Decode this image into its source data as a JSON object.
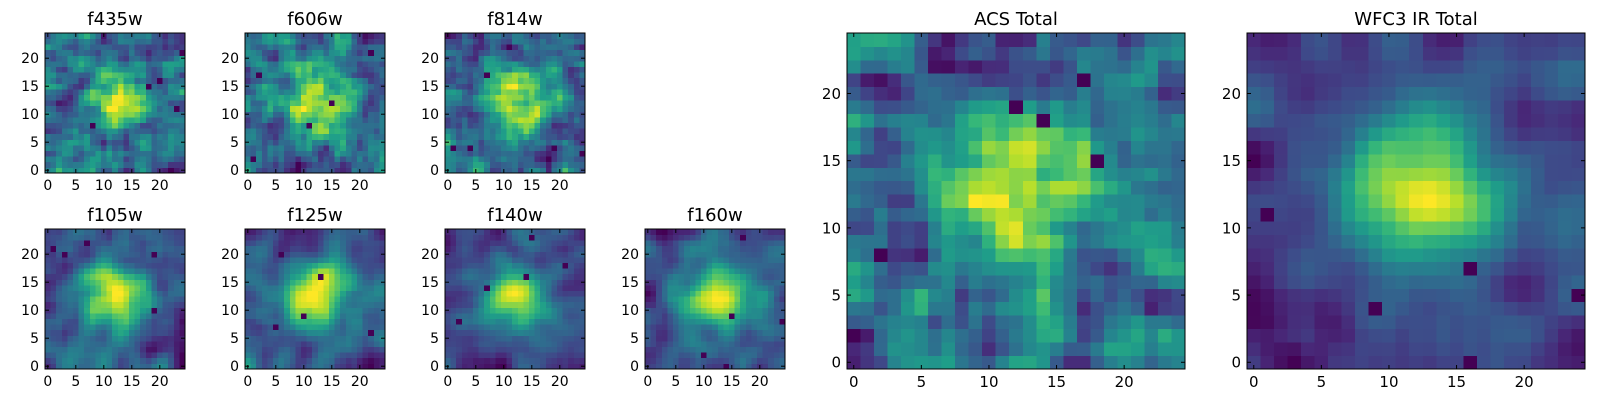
{
  "figure": {
    "colormap": "viridis"
  },
  "chart_data": [
    {
      "type": "heatmap",
      "title": "f435w",
      "grid_size": 25,
      "xticks": [
        "0",
        "5",
        "10",
        "15",
        "20"
      ],
      "yticks": [
        "0",
        "5",
        "10",
        "15",
        "20"
      ],
      "xlim": [
        0,
        24
      ],
      "ylim": [
        0,
        24
      ]
    },
    {
      "type": "heatmap",
      "title": "f606w",
      "grid_size": 25,
      "xticks": [
        "0",
        "5",
        "10",
        "15",
        "20"
      ],
      "yticks": [
        "0",
        "5",
        "10",
        "15",
        "20"
      ],
      "xlim": [
        0,
        24
      ],
      "ylim": [
        0,
        24
      ]
    },
    {
      "type": "heatmap",
      "title": "f814w",
      "grid_size": 25,
      "xticks": [
        "0",
        "5",
        "10",
        "15",
        "20"
      ],
      "yticks": [
        "0",
        "5",
        "10",
        "15",
        "20"
      ],
      "xlim": [
        0,
        24
      ],
      "ylim": [
        0,
        24
      ]
    },
    {
      "type": "heatmap",
      "title": "f105w",
      "grid_size": 25,
      "xticks": [
        "0",
        "5",
        "10",
        "15",
        "20"
      ],
      "yticks": [
        "0",
        "5",
        "10",
        "15",
        "20"
      ],
      "xlim": [
        0,
        24
      ],
      "ylim": [
        0,
        24
      ]
    },
    {
      "type": "heatmap",
      "title": "f125w",
      "grid_size": 25,
      "xticks": [
        "0",
        "5",
        "10",
        "15",
        "20"
      ],
      "yticks": [
        "0",
        "5",
        "10",
        "15",
        "20"
      ],
      "xlim": [
        0,
        24
      ],
      "ylim": [
        0,
        24
      ]
    },
    {
      "type": "heatmap",
      "title": "f140w",
      "grid_size": 25,
      "xticks": [
        "0",
        "5",
        "10",
        "15",
        "20"
      ],
      "yticks": [
        "0",
        "5",
        "10",
        "15",
        "20"
      ],
      "xlim": [
        0,
        24
      ],
      "ylim": [
        0,
        24
      ]
    },
    {
      "type": "heatmap",
      "title": "f160w",
      "grid_size": 25,
      "xticks": [
        "0",
        "5",
        "10",
        "15",
        "20"
      ],
      "yticks": [
        "0",
        "5",
        "10",
        "15",
        "20"
      ],
      "xlim": [
        0,
        24
      ],
      "ylim": [
        0,
        24
      ]
    },
    {
      "type": "heatmap",
      "title": "ACS Total",
      "grid_size": 25,
      "xticks": [
        "0",
        "5",
        "10",
        "15",
        "20"
      ],
      "yticks": [
        "0",
        "5",
        "10",
        "15",
        "20"
      ],
      "xlim": [
        0,
        24
      ],
      "ylim": [
        0,
        24
      ]
    },
    {
      "type": "heatmap",
      "title": "WFC3 IR Total",
      "grid_size": 25,
      "xticks": [
        "0",
        "5",
        "10",
        "15",
        "20"
      ],
      "yticks": [
        "0",
        "5",
        "10",
        "15",
        "20"
      ],
      "xlim": [
        0,
        24
      ],
      "ylim": [
        0,
        24
      ]
    }
  ]
}
